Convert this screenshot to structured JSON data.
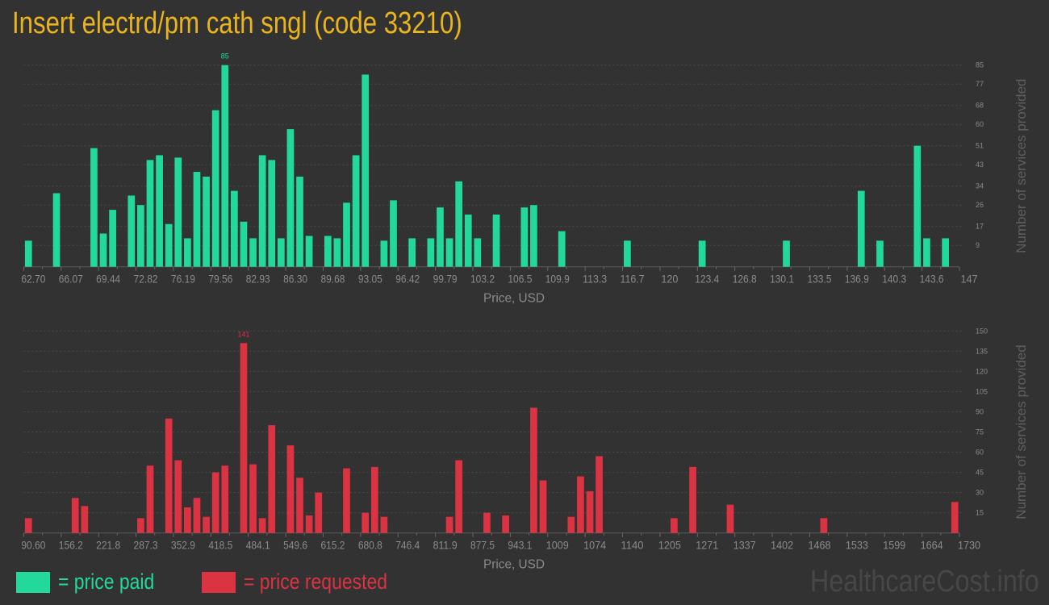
{
  "title": "Insert electrd/pm cath sngl (code 33210)",
  "legend": {
    "paid": "= price paid",
    "requested": "= price requested"
  },
  "watermark": "HealthcareCost.info",
  "colors": {
    "paid": "#22d99b",
    "requested": "#dc3343",
    "title": "#e9b41c"
  },
  "chart_data": [
    {
      "type": "bar",
      "name": "price-paid",
      "xlabel": "Price, USD",
      "ylabel": "Number of services provided",
      "xlim": [
        62.7,
        147
      ],
      "ylim": [
        0,
        85
      ],
      "bin_count": 100,
      "x_tick_labels": [
        "62.70",
        "66.07",
        "69.44",
        "72.82",
        "76.19",
        "79.56",
        "82.93",
        "86.30",
        "89.68",
        "93.05",
        "96.42",
        "99.79",
        "103.2",
        "106.5",
        "109.9",
        "113.3",
        "116.7",
        "120",
        "123.4",
        "126.8",
        "130.1",
        "133.5",
        "136.9",
        "140.3",
        "143.6",
        "147"
      ],
      "y_ticks": [
        9,
        17,
        26,
        34,
        43,
        51,
        60,
        68,
        77,
        85
      ],
      "y_tick_labels": [
        "9",
        "17",
        "26",
        "34",
        "43",
        "51",
        "60",
        "68",
        "77",
        "85"
      ],
      "peak_label": "85",
      "bins": [
        [
          0,
          11
        ],
        [
          3,
          31
        ],
        [
          7,
          50
        ],
        [
          8,
          14
        ],
        [
          9,
          24
        ],
        [
          11,
          30
        ],
        [
          12,
          26
        ],
        [
          13,
          45
        ],
        [
          14,
          47
        ],
        [
          15,
          18
        ],
        [
          16,
          46
        ],
        [
          17,
          12
        ],
        [
          18,
          40
        ],
        [
          19,
          38
        ],
        [
          20,
          66
        ],
        [
          21,
          85
        ],
        [
          22,
          32
        ],
        [
          23,
          19
        ],
        [
          24,
          12
        ],
        [
          25,
          47
        ],
        [
          26,
          45
        ],
        [
          27,
          12
        ],
        [
          28,
          58
        ],
        [
          29,
          38
        ],
        [
          30,
          13
        ],
        [
          32,
          13
        ],
        [
          33,
          12
        ],
        [
          34,
          27
        ],
        [
          35,
          47
        ],
        [
          36,
          81
        ],
        [
          38,
          11
        ],
        [
          39,
          28
        ],
        [
          41,
          12
        ],
        [
          43,
          12
        ],
        [
          44,
          25
        ],
        [
          45,
          12
        ],
        [
          46,
          36
        ],
        [
          47,
          22
        ],
        [
          48,
          12
        ],
        [
          50,
          22
        ],
        [
          53,
          25
        ],
        [
          54,
          26
        ],
        [
          57,
          15
        ],
        [
          64,
          11
        ],
        [
          72,
          11
        ],
        [
          81,
          11
        ],
        [
          89,
          32
        ],
        [
          91,
          11
        ],
        [
          95,
          51
        ],
        [
          96,
          12
        ],
        [
          98,
          12
        ]
      ]
    },
    {
      "type": "bar",
      "name": "price-requested",
      "xlabel": "Price, USD",
      "ylabel": "Number of services provided",
      "xlim": [
        90.6,
        1730
      ],
      "ylim": [
        0,
        150
      ],
      "bin_count": 100,
      "x_tick_labels": [
        "90.60",
        "156.2",
        "221.8",
        "287.3",
        "352.9",
        "418.5",
        "484.1",
        "549.6",
        "615.2",
        "680.8",
        "746.4",
        "811.9",
        "877.5",
        "943.1",
        "1009",
        "1074",
        "1140",
        "1205",
        "1271",
        "1337",
        "1402",
        "1468",
        "1533",
        "1599",
        "1664",
        "1730"
      ],
      "y_ticks": [
        15,
        30,
        45,
        60,
        75,
        90,
        105,
        120,
        135,
        150
      ],
      "y_tick_labels": [
        "15",
        "30",
        "45",
        "60",
        "75",
        "90",
        "105",
        "120",
        "135",
        "150"
      ],
      "peak_label": "141",
      "bins": [
        [
          0,
          11
        ],
        [
          5,
          26
        ],
        [
          6,
          20
        ],
        [
          12,
          11
        ],
        [
          13,
          50
        ],
        [
          15,
          85
        ],
        [
          16,
          54
        ],
        [
          17,
          19
        ],
        [
          18,
          26
        ],
        [
          19,
          12
        ],
        [
          20,
          45
        ],
        [
          21,
          50
        ],
        [
          23,
          141
        ],
        [
          24,
          51
        ],
        [
          25,
          11
        ],
        [
          26,
          80
        ],
        [
          28,
          65
        ],
        [
          29,
          41
        ],
        [
          30,
          13
        ],
        [
          31,
          30
        ],
        [
          34,
          48
        ],
        [
          36,
          15
        ],
        [
          37,
          49
        ],
        [
          38,
          12
        ],
        [
          45,
          12
        ],
        [
          46,
          54
        ],
        [
          49,
          15
        ],
        [
          51,
          13
        ],
        [
          54,
          93
        ],
        [
          55,
          39
        ],
        [
          58,
          12
        ],
        [
          59,
          42
        ],
        [
          60,
          31
        ],
        [
          61,
          57
        ],
        [
          69,
          11
        ],
        [
          71,
          49
        ],
        [
          75,
          21
        ],
        [
          85,
          11
        ],
        [
          99,
          23
        ]
      ]
    }
  ]
}
